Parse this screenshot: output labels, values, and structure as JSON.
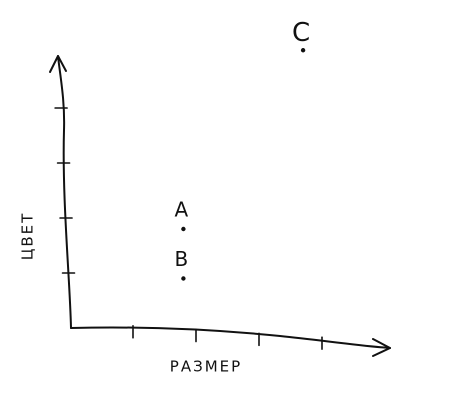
{
  "chart_data": {
    "type": "scatter",
    "x_label": "РАЗМЕР",
    "y_label": "ЦВЕТ",
    "xlim": [
      0,
      5
    ],
    "ylim": [
      0,
      5
    ],
    "xticks": [
      1,
      2,
      3,
      4
    ],
    "yticks": [
      1,
      2,
      3,
      4
    ],
    "color": "#111111",
    "points": [
      {
        "label": "A",
        "x": 1.8,
        "y": 1.8
      },
      {
        "label": "B",
        "x": 1.8,
        "y": 0.9
      },
      {
        "label": "C",
        "x": 3.7,
        "y": 5.05
      }
    ]
  }
}
